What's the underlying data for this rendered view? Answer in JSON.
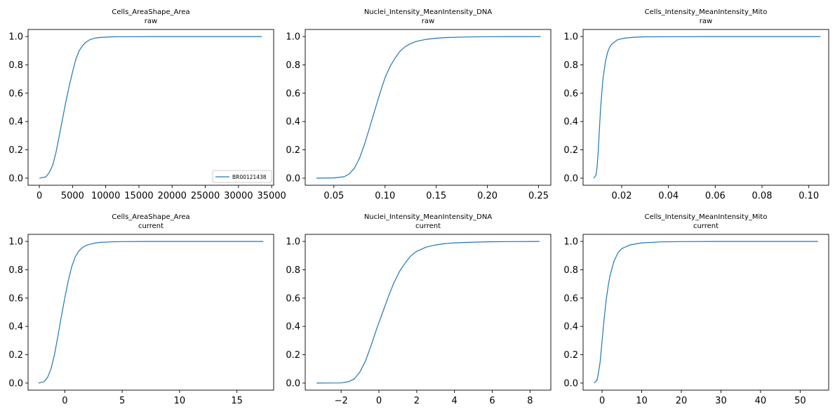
{
  "chart_data": [
    {
      "type": "line",
      "title": "Cells_AreaShape_Area",
      "subtitle": "raw",
      "xlim": [
        -1700,
        35300
      ],
      "ylim": [
        -0.05,
        1.05
      ],
      "xticks": [
        0,
        5000,
        10000,
        15000,
        20000,
        25000,
        30000,
        35000
      ],
      "xtick_labels": [
        "0",
        "5000",
        "10000",
        "15000",
        "20000",
        "25000",
        "30000",
        "35000"
      ],
      "yticks": [
        0,
        0.2,
        0.4,
        0.6,
        0.8,
        1.0
      ],
      "ytick_labels": [
        "0.0",
        "0.2",
        "0.4",
        "0.6",
        "0.8",
        "1.0"
      ],
      "color": "#1f77b4",
      "legend": {
        "placement": "lower right",
        "entries": [
          "BR00121438"
        ]
      },
      "series": [
        {
          "name": "BR00121438",
          "x": [
            0,
            1000,
            1500,
            2000,
            2500,
            3000,
            3500,
            4000,
            4500,
            5000,
            5500,
            6000,
            6500,
            7000,
            7500,
            8000,
            8500,
            9000,
            10000,
            11000,
            12000,
            14000,
            17000,
            20000,
            25000,
            30000,
            33500
          ],
          "y": [
            0,
            0.01,
            0.04,
            0.09,
            0.18,
            0.3,
            0.42,
            0.54,
            0.65,
            0.75,
            0.84,
            0.9,
            0.935,
            0.96,
            0.975,
            0.984,
            0.99,
            0.993,
            0.996,
            0.998,
            0.999,
            0.999,
            1.0,
            1.0,
            1.0,
            1.0,
            1.0
          ]
        }
      ]
    },
    {
      "type": "line",
      "title": "Nuclei_Intensity_MeanIntensity_DNA",
      "subtitle": "raw",
      "xlim": [
        0.022,
        0.262
      ],
      "ylim": [
        -0.05,
        1.05
      ],
      "xticks": [
        0.05,
        0.1,
        0.15,
        0.2,
        0.25
      ],
      "xtick_labels": [
        "0.05",
        "0.10",
        "0.15",
        "0.20",
        "0.25"
      ],
      "yticks": [
        0,
        0.2,
        0.4,
        0.6,
        0.8,
        1.0
      ],
      "ytick_labels": [
        "0.0",
        "0.2",
        "0.4",
        "0.6",
        "0.8",
        "1.0"
      ],
      "color": "#1f77b4",
      "series": [
        {
          "x": [
            0.033,
            0.05,
            0.06,
            0.065,
            0.07,
            0.075,
            0.08,
            0.085,
            0.09,
            0.095,
            0.1,
            0.105,
            0.11,
            0.115,
            0.12,
            0.125,
            0.13,
            0.14,
            0.15,
            0.16,
            0.18,
            0.2,
            0.22,
            0.24,
            0.252
          ],
          "y": [
            0,
            0.002,
            0.01,
            0.03,
            0.07,
            0.14,
            0.24,
            0.36,
            0.48,
            0.6,
            0.71,
            0.79,
            0.85,
            0.9,
            0.93,
            0.95,
            0.965,
            0.98,
            0.988,
            0.993,
            0.997,
            0.999,
            1.0,
            1.0,
            1.0
          ]
        }
      ]
    },
    {
      "type": "line",
      "title": "Cells_Intensity_MeanIntensity_Mito",
      "subtitle": "raw",
      "xlim": [
        0.0035,
        0.1085
      ],
      "ylim": [
        -0.05,
        1.05
      ],
      "xticks": [
        0.02,
        0.04,
        0.06,
        0.08,
        0.1
      ],
      "xtick_labels": [
        "0.02",
        "0.04",
        "0.06",
        "0.08",
        "0.10"
      ],
      "yticks": [
        0,
        0.2,
        0.4,
        0.6,
        0.8,
        1.0
      ],
      "ytick_labels": [
        "0.0",
        "0.2",
        "0.4",
        "0.6",
        "0.8",
        "1.0"
      ],
      "color": "#1f77b4",
      "series": [
        {
          "x": [
            0.008,
            0.009,
            0.0095,
            0.01,
            0.0105,
            0.011,
            0.012,
            0.013,
            0.014,
            0.015,
            0.016,
            0.018,
            0.02,
            0.022,
            0.025,
            0.03,
            0.04,
            0.06,
            0.08,
            0.105
          ],
          "y": [
            0,
            0.02,
            0.08,
            0.2,
            0.35,
            0.5,
            0.7,
            0.82,
            0.89,
            0.93,
            0.95,
            0.975,
            0.985,
            0.99,
            0.995,
            0.998,
            0.999,
            1.0,
            1.0,
            1.0
          ]
        }
      ]
    },
    {
      "type": "line",
      "title": "Cells_AreaShape_Area",
      "subtitle": "current",
      "xlim": [
        -3.2,
        18.2
      ],
      "ylim": [
        -0.05,
        1.05
      ],
      "xticks": [
        0,
        5,
        10,
        15
      ],
      "xtick_labels": [
        "0",
        "5",
        "10",
        "15"
      ],
      "yticks": [
        0,
        0.2,
        0.4,
        0.6,
        0.8,
        1.0
      ],
      "ytick_labels": [
        "0.0",
        "0.2",
        "0.4",
        "0.6",
        "0.8",
        "1.0"
      ],
      "color": "#1f77b4",
      "series": [
        {
          "x": [
            -2.3,
            -1.8,
            -1.5,
            -1.2,
            -0.9,
            -0.6,
            -0.3,
            0,
            0.3,
            0.6,
            0.9,
            1.2,
            1.5,
            1.8,
            2.2,
            2.6,
            3.0,
            4.0,
            5.0,
            7.0,
            10.0,
            13.0,
            17.3
          ],
          "y": [
            0,
            0.01,
            0.04,
            0.1,
            0.2,
            0.33,
            0.47,
            0.6,
            0.72,
            0.82,
            0.89,
            0.93,
            0.955,
            0.97,
            0.98,
            0.988,
            0.993,
            0.997,
            0.999,
            1.0,
            1.0,
            1.0,
            1.0
          ]
        }
      ]
    },
    {
      "type": "line",
      "title": "Nuclei_Intensity_MeanIntensity_DNA",
      "subtitle": "current",
      "xlim": [
        -3.9,
        9.1
      ],
      "ylim": [
        -0.05,
        1.05
      ],
      "xticks": [
        -2,
        0,
        2,
        4,
        6,
        8
      ],
      "xtick_labels": [
        "−2",
        "0",
        "2",
        "4",
        "6",
        "8"
      ],
      "yticks": [
        0,
        0.2,
        0.4,
        0.6,
        0.8,
        1.0
      ],
      "ytick_labels": [
        "0.0",
        "0.2",
        "0.4",
        "0.6",
        "0.8",
        "1.0"
      ],
      "color": "#1f77b4",
      "series": [
        {
          "x": [
            -3.3,
            -2,
            -1.6,
            -1.3,
            -1.0,
            -0.7,
            -0.4,
            -0.1,
            0.2,
            0.5,
            0.8,
            1.1,
            1.4,
            1.7,
            2.0,
            2.5,
            3.0,
            3.5,
            4.0,
            5.0,
            6.0,
            7.0,
            8.5
          ],
          "y": [
            0,
            0.001,
            0.01,
            0.03,
            0.08,
            0.16,
            0.27,
            0.39,
            0.5,
            0.61,
            0.71,
            0.79,
            0.85,
            0.9,
            0.93,
            0.96,
            0.975,
            0.985,
            0.99,
            0.995,
            0.998,
            0.999,
            1.0
          ]
        }
      ]
    },
    {
      "type": "line",
      "title": "Cells_Intensity_MeanIntensity_Mito",
      "subtitle": "current",
      "xlim": [
        -4.8,
        57.2
      ],
      "ylim": [
        -0.05,
        1.05
      ],
      "xticks": [
        0,
        10,
        20,
        30,
        40,
        50
      ],
      "xtick_labels": [
        "0",
        "10",
        "20",
        "30",
        "40",
        "50"
      ],
      "yticks": [
        0,
        0.2,
        0.4,
        0.6,
        0.8,
        1.0
      ],
      "ytick_labels": [
        "0.0",
        "0.2",
        "0.4",
        "0.6",
        "0.8",
        "1.0"
      ],
      "color": "#1f77b4",
      "series": [
        {
          "x": [
            -2,
            -1.3,
            -1,
            -0.5,
            0,
            0.5,
            1,
            1.5,
            2,
            3,
            4,
            5,
            7,
            10,
            15,
            20,
            30,
            40,
            54.5
          ],
          "y": [
            0,
            0.02,
            0.06,
            0.15,
            0.3,
            0.45,
            0.58,
            0.68,
            0.76,
            0.86,
            0.92,
            0.95,
            0.975,
            0.99,
            0.997,
            0.999,
            1.0,
            1.0,
            1.0
          ]
        }
      ]
    }
  ]
}
